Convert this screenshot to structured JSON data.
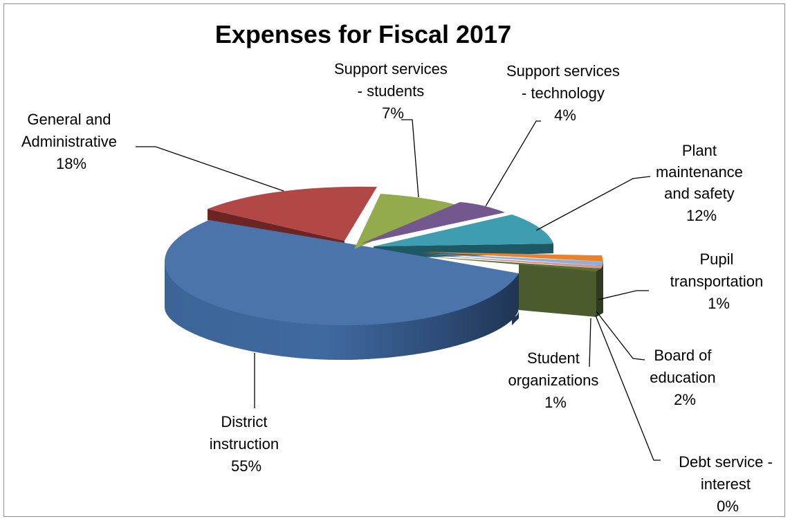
{
  "chart_data": {
    "type": "pie",
    "title": "Expenses for Fiscal 2017",
    "style": "3d-exploded",
    "legend": "none",
    "slices": [
      {
        "name": "District instruction",
        "label": [
          "District",
          "instruction",
          "55%"
        ],
        "value": 55,
        "color": "#4a74aa"
      },
      {
        "name": "General and Administrative",
        "label": [
          "General and",
          "Administrative",
          "18%"
        ],
        "value": 18,
        "color": "#b24846"
      },
      {
        "name": "Support services - students",
        "label": [
          "Support services",
          "- students",
          "7%"
        ],
        "value": 7,
        "color": "#93ab4c"
      },
      {
        "name": "Support services - technology",
        "label": [
          "Support services",
          "- technology",
          "4%"
        ],
        "value": 4,
        "color": "#73578f"
      },
      {
        "name": "Plant maintenance and safety",
        "label": [
          "Plant",
          "maintenance",
          "and safety",
          "12%"
        ],
        "value": 12,
        "color": "#3f9db1"
      },
      {
        "name": "Pupil transportation",
        "label": [
          "Pupil",
          "transportation",
          "1%"
        ],
        "value": 1,
        "color": "#e8832c"
      },
      {
        "name": "Board of education",
        "label": [
          "Board of",
          "education",
          "2%"
        ],
        "value": 2,
        "color": "#8fb0d8"
      },
      {
        "name": "Debt service - interest",
        "label": [
          "Debt service -",
          "interest",
          "0%"
        ],
        "value": 0,
        "color": "#d89593"
      },
      {
        "name": "Student organizations",
        "label": [
          "Student",
          "organizations",
          "1%"
        ],
        "value": 1,
        "color": "#5d7034"
      }
    ]
  }
}
